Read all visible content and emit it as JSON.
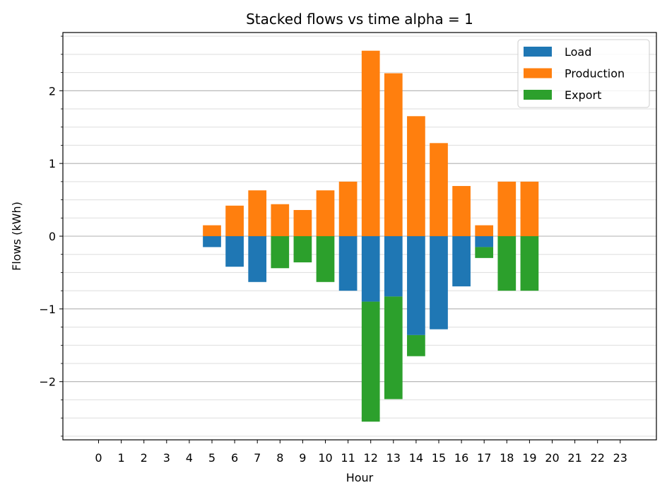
{
  "chart_data": {
    "type": "bar",
    "stacked": true,
    "title": "Stacked flows vs time alpha = 1",
    "xlabel": "Hour",
    "ylabel": "Flows (kWh)",
    "categories": [
      "0",
      "1",
      "2",
      "3",
      "4",
      "5",
      "6",
      "7",
      "8",
      "9",
      "10",
      "11",
      "12",
      "13",
      "14",
      "15",
      "16",
      "17",
      "18",
      "19",
      "20",
      "21",
      "22",
      "23"
    ],
    "ylim": [
      -2.8,
      2.8
    ],
    "yticks": [
      -2,
      -1,
      0,
      1,
      2
    ],
    "ytick_labels": [
      "−2",
      "−1",
      "0",
      "1",
      "2"
    ],
    "grid": "horizontal major and minor",
    "legend_position": "top-right",
    "series": [
      {
        "name": "Load",
        "color": "#1f77b4",
        "values": [
          0,
          0,
          0,
          0,
          0,
          -0.15,
          -0.42,
          -0.63,
          0,
          0,
          0,
          -0.75,
          -0.9,
          -0.83,
          -1.36,
          -1.28,
          -0.69,
          -0.15,
          0,
          0,
          0,
          0,
          0,
          0
        ]
      },
      {
        "name": "Production",
        "color": "#ff7f0e",
        "values": [
          0,
          0,
          0,
          0,
          0,
          0.15,
          0.42,
          0.63,
          0.44,
          0.36,
          0.63,
          0.75,
          2.55,
          2.24,
          1.65,
          1.28,
          0.69,
          0.15,
          0.75,
          0.75,
          0,
          0,
          0,
          0
        ]
      },
      {
        "name": "Export",
        "color": "#2ca02c",
        "values": [
          0,
          0,
          0,
          0,
          0,
          0,
          0,
          0,
          -0.44,
          -0.36,
          -0.63,
          0,
          -1.65,
          -1.41,
          -0.29,
          0,
          0,
          -0.15,
          -0.75,
          -0.75,
          0,
          0,
          0,
          0
        ]
      }
    ]
  }
}
